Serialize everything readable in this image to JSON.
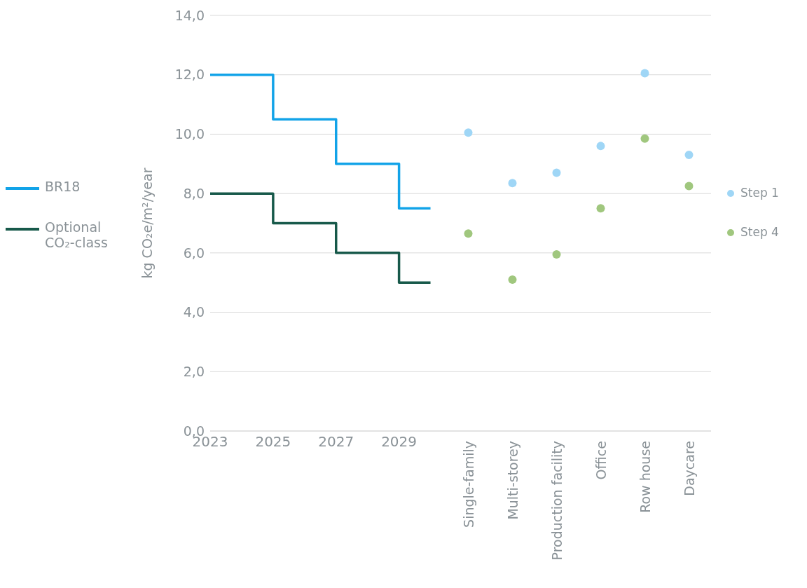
{
  "chart_data": [
    {
      "type": "step",
      "ylabel": "kg CO₂e/m²/year",
      "xlim": [
        2023,
        2030.5
      ],
      "xticks": [
        2023,
        2025,
        2027,
        2029
      ],
      "ylim": [
        0,
        14
      ],
      "yticks": [
        {
          "value": 0,
          "label": "0,0"
        },
        {
          "value": 2,
          "label": "2,0"
        },
        {
          "value": 4,
          "label": "4,0"
        },
        {
          "value": 6,
          "label": "6,0"
        },
        {
          "value": 8,
          "label": "8,0"
        },
        {
          "value": 10,
          "label": "10,0"
        },
        {
          "value": 12,
          "label": "12,0"
        },
        {
          "value": 14,
          "label": "14,0"
        }
      ],
      "grid": "y",
      "legend": "left",
      "marker": "none",
      "series": [
        {
          "name": "BR18",
          "color": "#12a3e8",
          "x": [
            2023,
            2025,
            2027,
            2029,
            2030
          ],
          "values": [
            12,
            10.5,
            9,
            7.5,
            7.5
          ]
        },
        {
          "name": "Optional CO₂-class",
          "color": "#17594a",
          "x": [
            2023,
            2025,
            2027,
            2029,
            2030
          ],
          "values": [
            8,
            7,
            6,
            5,
            5
          ]
        }
      ]
    },
    {
      "type": "scatter",
      "categories": [
        "Single-family",
        "Multi-storey",
        "Production facility",
        "Office",
        "Row house",
        "Daycare"
      ],
      "ylim": [
        0,
        14
      ],
      "yticks": [
        0,
        2,
        4,
        6,
        8,
        10,
        12,
        14
      ],
      "grid": "y",
      "legend": "right",
      "tick_labels": "x",
      "marker": "circle",
      "series": [
        {
          "name": "Step 1",
          "color": "#9fd6f6",
          "values": [
            10.05,
            8.35,
            8.7,
            9.6,
            12.05,
            9.3
          ]
        },
        {
          "name": "Step 4",
          "color": "#a0c77e",
          "values": [
            6.65,
            5.1,
            5.95,
            7.5,
            9.85,
            8.25
          ]
        }
      ]
    }
  ]
}
